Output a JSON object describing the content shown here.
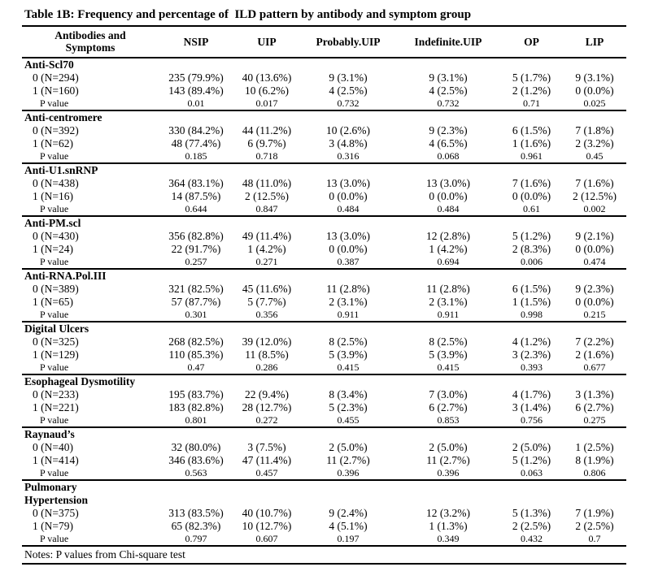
{
  "title": "Table 1B: Frequency and percentage of  ILD pattern by antibody and symptom group",
  "notes": "Notes: P values from Chi-square test",
  "colors": {
    "text": "#000000",
    "background": "#ffffff",
    "rule": "#000000"
  },
  "table": {
    "columns": [
      "Antibodies and\nSymptoms",
      "NSIP",
      "UIP",
      "Probably.UIP",
      "Indefinite.UIP",
      "OP",
      "LIP"
    ],
    "sections": [
      {
        "name": "Anti-Scl70",
        "rows": [
          {
            "label": "0 (N=294)",
            "values": [
              "235 (79.9%)",
              "40 (13.6%)",
              "9 (3.1%)",
              "9 (3.1%)",
              "5 (1.7%)",
              "9 (3.1%)"
            ]
          },
          {
            "label": "1 (N=160)",
            "values": [
              "143 (89.4%)",
              "10 (6.2%)",
              "4 (2.5%)",
              "4 (2.5%)",
              "2 (1.2%)",
              "0 (0.0%)"
            ]
          },
          {
            "label": "P value",
            "values": [
              "0.01",
              "0.017",
              "0.732",
              "0.732",
              "0.71",
              "0.025"
            ]
          }
        ]
      },
      {
        "name": "Anti-centromere",
        "rows": [
          {
            "label": "0 (N=392)",
            "values": [
              "330 (84.2%)",
              "44 (11.2%)",
              "10 (2.6%)",
              "9 (2.3%)",
              "6 (1.5%)",
              "7 (1.8%)"
            ]
          },
          {
            "label": "1 (N=62)",
            "values": [
              "48 (77.4%)",
              "6 (9.7%)",
              "3 (4.8%)",
              "4 (6.5%)",
              "1 (1.6%)",
              "2 (3.2%)"
            ]
          },
          {
            "label": "P value",
            "values": [
              "0.185",
              "0.718",
              "0.316",
              "0.068",
              "0.961",
              "0.45"
            ]
          }
        ]
      },
      {
        "name": "Anti-U1.snRNP",
        "rows": [
          {
            "label": "0 (N=438)",
            "values": [
              "364 (83.1%)",
              "48 (11.0%)",
              "13 (3.0%)",
              "13 (3.0%)",
              "7 (1.6%)",
              "7 (1.6%)"
            ]
          },
          {
            "label": "1 (N=16)",
            "values": [
              "14 (87.5%)",
              "2 (12.5%)",
              "0 (0.0%)",
              "0 (0.0%)",
              "0 (0.0%)",
              "2 (12.5%)"
            ]
          },
          {
            "label": "P value",
            "values": [
              "0.644",
              "0.847",
              "0.484",
              "0.484",
              "0.61",
              "0.002"
            ]
          }
        ]
      },
      {
        "name": "Anti-PM.scl",
        "rows": [
          {
            "label": "0 (N=430)",
            "values": [
              "356 (82.8%)",
              "49 (11.4%)",
              "13 (3.0%)",
              "12 (2.8%)",
              "5 (1.2%)",
              "9 (2.1%)"
            ]
          },
          {
            "label": "1 (N=24)",
            "values": [
              "22 (91.7%)",
              "1 (4.2%)",
              "0 (0.0%)",
              "1 (4.2%)",
              "2 (8.3%)",
              "0 (0.0%)"
            ]
          },
          {
            "label": "P value",
            "values": [
              "0.257",
              "0.271",
              "0.387",
              "0.694",
              "0.006",
              "0.474"
            ]
          }
        ]
      },
      {
        "name": "Anti-RNA.Pol.III",
        "rows": [
          {
            "label": "0 (N=389)",
            "values": [
              "321 (82.5%)",
              "45 (11.6%)",
              "11 (2.8%)",
              "11 (2.8%)",
              "6 (1.5%)",
              "9 (2.3%)"
            ]
          },
          {
            "label": "1 (N=65)",
            "values": [
              "57 (87.7%)",
              "5 (7.7%)",
              "2 (3.1%)",
              "2 (3.1%)",
              "1 (1.5%)",
              "0 (0.0%)"
            ]
          },
          {
            "label": "P value",
            "values": [
              "0.301",
              "0.356",
              "0.911",
              "0.911",
              "0.998",
              "0.215"
            ]
          }
        ]
      },
      {
        "name": "Digital Ulcers",
        "rows": [
          {
            "label": "0 (N=325)",
            "values": [
              "268 (82.5%)",
              "39 (12.0%)",
              "8 (2.5%)",
              "8 (2.5%)",
              "4 (1.2%)",
              "7 (2.2%)"
            ]
          },
          {
            "label": "1 (N=129)",
            "values": [
              "110 (85.3%)",
              "11 (8.5%)",
              "5 (3.9%)",
              "5 (3.9%)",
              "3 (2.3%)",
              "2 (1.6%)"
            ]
          },
          {
            "label": "P value",
            "values": [
              "0.47",
              "0.286",
              "0.415",
              "0.415",
              "0.393",
              "0.677"
            ]
          }
        ]
      },
      {
        "name": "Esophageal Dysmotility",
        "rows": [
          {
            "label": "0 (N=233)",
            "values": [
              "195 (83.7%)",
              "22 (9.4%)",
              "8 (3.4%)",
              "7 (3.0%)",
              "4 (1.7%)",
              "3 (1.3%)"
            ]
          },
          {
            "label": "1 (N=221)",
            "values": [
              "183 (82.8%)",
              "28 (12.7%)",
              "5 (2.3%)",
              "6 (2.7%)",
              "3 (1.4%)",
              "6 (2.7%)"
            ]
          },
          {
            "label": "P value",
            "values": [
              "0.801",
              "0.272",
              "0.455",
              "0.853",
              "0.756",
              "0.275"
            ]
          }
        ]
      },
      {
        "name": "Raynaud’s",
        "rows": [
          {
            "label": "0 (N=40)",
            "values": [
              "32 (80.0%)",
              "3 (7.5%)",
              "2 (5.0%)",
              "2 (5.0%)",
              "2 (5.0%)",
              "1 (2.5%)"
            ]
          },
          {
            "label": "1 (N=414)",
            "values": [
              "346 (83.6%)",
              "47 (11.4%)",
              "11 (2.7%)",
              "11 (2.7%)",
              "5 (1.2%)",
              "8 (1.9%)"
            ]
          },
          {
            "label": "P value",
            "values": [
              "0.563",
              "0.457",
              "0.396",
              "0.396",
              "0.063",
              "0.806"
            ]
          }
        ]
      },
      {
        "name": "Pulmonary\nHypertension",
        "rows": [
          {
            "label": "0 (N=375)",
            "values": [
              "313 (83.5%)",
              "40 (10.7%)",
              "9 (2.4%)",
              "12 (3.2%)",
              "5 (1.3%)",
              "7 (1.9%)"
            ]
          },
          {
            "label": "1 (N=79)",
            "values": [
              "65 (82.3%)",
              "10 (12.7%)",
              "4 (5.1%)",
              "1 (1.3%)",
              "2 (2.5%)",
              "2 (2.5%)"
            ]
          },
          {
            "label": "P value",
            "values": [
              "0.797",
              "0.607",
              "0.197",
              "0.349",
              "0.432",
              "0.7"
            ]
          }
        ]
      }
    ]
  }
}
